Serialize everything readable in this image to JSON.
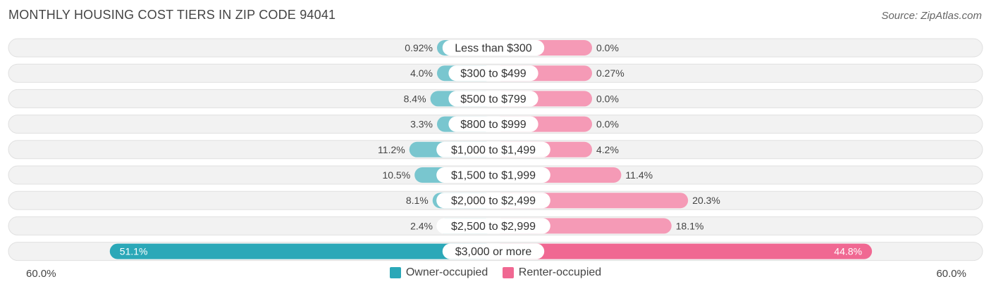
{
  "chart_data": {
    "type": "bar",
    "orientation": "horizontal-diverging",
    "title": "Monthly Housing Cost Tiers in Zip Code 94041",
    "source": "Source: ZipAtlas.com",
    "categories": [
      "Less than $300",
      "$300 to $499",
      "$500 to $799",
      "$800 to $999",
      "$1,000 to $1,499",
      "$1,500 to $1,999",
      "$2,000 to $2,499",
      "$2,500 to $2,999",
      "$3,000 or more"
    ],
    "series": [
      {
        "name": "Owner-occupied",
        "side": "left",
        "values": [
          0.92,
          4.0,
          8.4,
          3.3,
          11.2,
          10.5,
          8.1,
          2.4,
          51.1
        ],
        "labels": [
          "0.92%",
          "4.0%",
          "8.4%",
          "3.3%",
          "11.2%",
          "10.5%",
          "8.1%",
          "2.4%",
          "51.1%"
        ],
        "color": "#79c6cf",
        "highlight_color": "#2ba8b8"
      },
      {
        "name": "Renter-occupied",
        "side": "right",
        "values": [
          0.0,
          0.27,
          0.0,
          0.0,
          4.2,
          11.4,
          20.3,
          18.1,
          44.8
        ],
        "labels": [
          "0.0%",
          "0.27%",
          "0.0%",
          "0.0%",
          "4.2%",
          "11.4%",
          "20.3%",
          "18.1%",
          "44.8%"
        ],
        "color": "#f59ab6",
        "highlight_color": "#f06892"
      }
    ],
    "axis": {
      "left_label": "60.0%",
      "right_label": "60.0%",
      "max": 60.0
    },
    "legend_position": "bottom-center"
  }
}
